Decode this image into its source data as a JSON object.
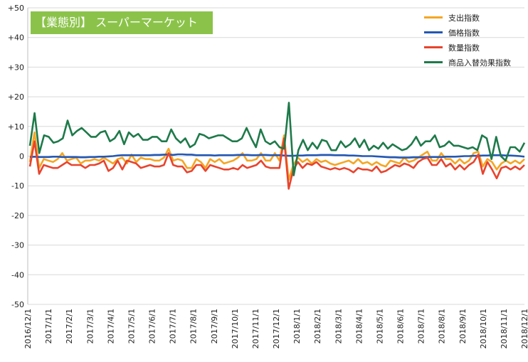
{
  "chart_data": {
    "type": "line",
    "title": "【業態別】 スーパーマーケット",
    "ylim": [
      -50,
      50
    ],
    "yticks": [
      "+50",
      "+40",
      "+30",
      "+20",
      "+10",
      "0",
      "-10",
      "-20",
      "-30",
      "-40",
      "-50"
    ],
    "ytick_values": [
      50,
      40,
      30,
      20,
      10,
      0,
      -10,
      -20,
      -30,
      -40,
      -50
    ],
    "xtick_labels": [
      "2016/12/1",
      "2017/1/1",
      "2017/2/1",
      "2017/3/1",
      "2017/4/1",
      "2017/5/1",
      "2017/6/1",
      "2017/7/1",
      "2017/8/1",
      "2017/9/1",
      "2017/10/1",
      "2017/11/1",
      "2017/12/1",
      "2018/1/1",
      "2018/2/1",
      "2018/3/1",
      "2018/4/1",
      "2018/5/1",
      "2018/6/1",
      "2018/7/1",
      "2018/8/1",
      "2018/9/1",
      "2018/10/1",
      "2018/11/1",
      "2018/12/1"
    ],
    "grid": "horizontal",
    "legend_position": "top-right",
    "series": [
      {
        "name": "支出指数",
        "color": "#f5a623",
        "values": [
          -2,
          8,
          -4,
          -1,
          -1.5,
          -2,
          -1,
          1,
          -1.5,
          -1,
          -0.5,
          -2.5,
          -1.5,
          -1.5,
          -1,
          -1.5,
          -0.5,
          -1.5,
          -2.5,
          -1,
          -0.5,
          -2.5,
          0.5,
          -2,
          -0.5,
          -1,
          -1,
          -1.5,
          -1.5,
          -0.5,
          2.5,
          -1.5,
          -1,
          -1.5,
          -4,
          -4,
          -1,
          -2,
          -4,
          -1,
          -2,
          -1,
          -2.5,
          -2,
          -1.5,
          -0.5,
          1,
          -1.5,
          -1.5,
          -1,
          1,
          -1.5,
          -1.5,
          1,
          -1.5,
          7,
          -8,
          -3,
          -0.5,
          -2,
          -1,
          -2.5,
          -1,
          -2,
          -1.5,
          -2.5,
          -3,
          -2.5,
          -2,
          -1.5,
          -2.5,
          -1,
          -2.5,
          -2,
          -3,
          -2,
          -3,
          -3.5,
          -1.5,
          -2,
          -2.5,
          -0.5,
          -2,
          -1.5,
          -0.5,
          0.5,
          1.5,
          -1.5,
          -1.5,
          1,
          -1,
          -1,
          -2.5,
          -1,
          -2.5,
          -1.5,
          1,
          1.5,
          -3.5,
          -1,
          -2,
          -4.5,
          -2.5,
          -1.5,
          -2.5,
          -1.5,
          -2.5,
          -1
        ]
      },
      {
        "name": "価格指数",
        "color": "#2458b5",
        "values": [
          -0.3,
          -0.2,
          -0.3,
          -0.3,
          -0.3,
          -0.2,
          -0.2,
          -0.3,
          -0.3,
          -0.3,
          -0.3,
          -0.4,
          -0.4,
          -0.3,
          -0.3,
          -0.2,
          -0.2,
          -0.1,
          0,
          0.2,
          0.3,
          0.3,
          0.3,
          0.3,
          0.3,
          0.3,
          0.3,
          0.4,
          0.4,
          0.5,
          0.5,
          0.4,
          0.6,
          0.6,
          0.5,
          0.5,
          0.3,
          0.3,
          0.3,
          0.3,
          0.2,
          0.3,
          0.3,
          0.3,
          0.3,
          0.4,
          0.4,
          0.4,
          0.3,
          0.3,
          0.4,
          0.4,
          0.3,
          0.3,
          0.3,
          0.2,
          0.1,
          0.1,
          0.2,
          0.2,
          0.3,
          0.3,
          0.3,
          0.4,
          0.4,
          0.4,
          0.3,
          0.3,
          0.3,
          0.2,
          0.2,
          0.1,
          0,
          0,
          0,
          -0.1,
          -0.2,
          -0.3,
          -0.4,
          -0.4,
          -0.5,
          -0.5,
          -0.5,
          -0.4,
          -0.4,
          -0.4,
          -0.3,
          -0.3,
          -0.3,
          -0.3,
          -0.2,
          -0.2,
          -0.2,
          -0.1,
          0,
          0,
          0.1,
          0.1,
          0.2,
          0.2,
          0.3,
          0.3,
          0.3,
          0.2,
          0.2,
          0.1,
          0,
          -0.2
        ]
      },
      {
        "name": "数量指数",
        "color": "#e8442e",
        "values": [
          -3.5,
          5,
          -6,
          -3,
          -3.5,
          -4,
          -4,
          -3,
          -2,
          -3,
          -3,
          -3,
          -4,
          -3,
          -3,
          -2.5,
          -1.5,
          -5,
          -4,
          -1.5,
          -4.5,
          -1.5,
          -2,
          -2.5,
          -4,
          -3.5,
          -3,
          -3.5,
          -3.5,
          -3,
          1,
          -3,
          -3.5,
          -3.5,
          -5.5,
          -5,
          -3,
          -3,
          -5,
          -3,
          -3.5,
          -4,
          -4.5,
          -4.5,
          -4,
          -4.5,
          -3,
          -4,
          -3.5,
          -3,
          -1.5,
          -3.5,
          -4,
          -4,
          -4,
          6,
          -11,
          -4.5,
          -2,
          -4,
          -2.5,
          -3,
          -2,
          -3.5,
          -4,
          -4.5,
          -4,
          -4.5,
          -4,
          -4.5,
          -5.5,
          -4,
          -4.5,
          -4.5,
          -5,
          -3.5,
          -5.5,
          -5,
          -4,
          -3,
          -3.5,
          -2.5,
          -3,
          -4,
          -2,
          -1,
          -0.5,
          -3,
          -3,
          -1,
          -3.5,
          -2.5,
          -4.5,
          -3,
          -4.5,
          -3,
          -2,
          0.5,
          -6,
          -2,
          -4.5,
          -7.5,
          -4,
          -3.5,
          -4.5,
          -3.5,
          -4.5,
          -3
        ]
      },
      {
        "name": "商品入替効果指数",
        "color": "#1e7a4a",
        "values": [
          3.5,
          14.5,
          1,
          7,
          6.5,
          4.5,
          5,
          6,
          12,
          7,
          8.5,
          9.5,
          8,
          6.5,
          6.5,
          8,
          8.5,
          5,
          6,
          8.5,
          4,
          8,
          6.5,
          7.5,
          5.5,
          5.5,
          6.5,
          6.5,
          5,
          5,
          9,
          6,
          4.5,
          6,
          3,
          4,
          7.5,
          7,
          6,
          6.5,
          7,
          7,
          6,
          5,
          5,
          6,
          9.5,
          6,
          3,
          9,
          5,
          4,
          5,
          3,
          2.5,
          18,
          -6.5,
          2,
          5.5,
          2,
          4.5,
          2.5,
          5.5,
          5,
          2,
          2,
          5,
          3,
          4,
          6,
          3,
          5.5,
          2,
          3.5,
          2.5,
          4.5,
          2.5,
          4,
          3,
          2,
          2.5,
          4,
          6.5,
          3.5,
          5,
          5,
          7,
          3,
          3.5,
          5,
          3.5,
          3.5,
          3,
          2.5,
          3,
          2,
          7,
          6,
          -1,
          6.5,
          0,
          -1.5,
          3,
          3,
          1.5,
          4.5
        ]
      }
    ]
  }
}
